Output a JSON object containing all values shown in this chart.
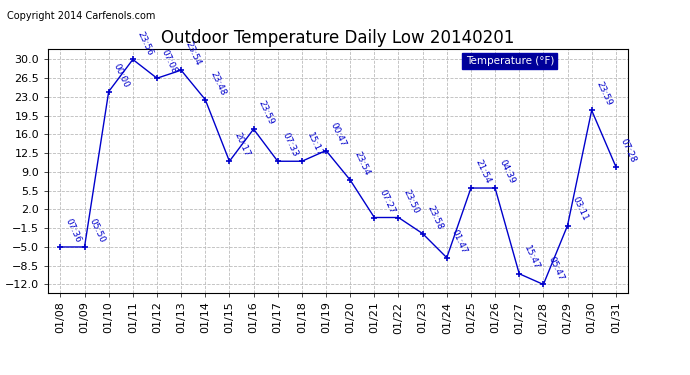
{
  "title": "Outdoor Temperature Daily Low 20140201",
  "legend_label": "Temperature (°F)",
  "copyright": "Copyright 2014 Carfenols.com",
  "dates": [
    "01/08",
    "01/09",
    "01/10",
    "01/11",
    "01/12",
    "01/13",
    "01/14",
    "01/15",
    "01/16",
    "01/17",
    "01/18",
    "01/19",
    "01/20",
    "01/21",
    "01/22",
    "01/23",
    "01/24",
    "01/25",
    "01/26",
    "01/27",
    "01/28",
    "01/29",
    "01/30",
    "01/31"
  ],
  "values": [
    -5.0,
    -5.0,
    24.0,
    30.0,
    26.5,
    28.0,
    22.5,
    11.0,
    17.0,
    11.0,
    11.0,
    13.0,
    7.5,
    0.5,
    0.5,
    -2.5,
    -7.0,
    6.0,
    6.0,
    -10.0,
    -12.0,
    -1.0,
    20.5,
    10.0
  ],
  "time_labels": [
    "07:36",
    "05:50",
    "00:00",
    "23:56",
    "07:08",
    "23:54",
    "23:48",
    "20:17",
    "23:59",
    "07:33",
    "15:17",
    "00:47",
    "23:54",
    "07:27",
    "23:50",
    "23:58",
    "01:47",
    "21:54",
    "04:39",
    "15:47",
    "05:47",
    "03:11",
    "23:59",
    "07:28"
  ],
  "ylim": [
    -13.5,
    32.0
  ],
  "yticks": [
    -12.0,
    -8.5,
    -5.0,
    -1.5,
    2.0,
    5.5,
    9.0,
    12.5,
    16.0,
    19.5,
    23.0,
    26.5,
    30.0
  ],
  "line_color": "#0000cc",
  "marker_color": "#0000cc",
  "bg_color": "#ffffff",
  "plot_bg_color": "#ffffff",
  "grid_color": "#bbbbbb",
  "label_color": "#0000cc",
  "legend_bg": "#000099",
  "legend_text_color": "#ffffff",
  "title_fontsize": 12,
  "tick_fontsize": 8,
  "annotation_fontsize": 6.5,
  "copyright_fontsize": 7
}
